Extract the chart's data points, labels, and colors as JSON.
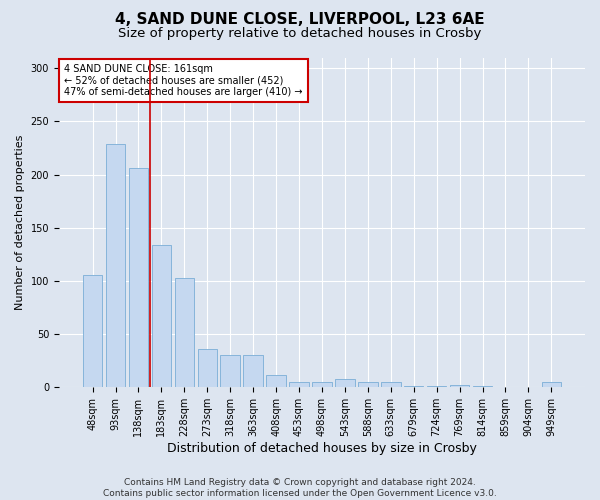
{
  "title1": "4, SAND DUNE CLOSE, LIVERPOOL, L23 6AE",
  "title2": "Size of property relative to detached houses in Crosby",
  "xlabel": "Distribution of detached houses by size in Crosby",
  "ylabel": "Number of detached properties",
  "bar_labels": [
    "48sqm",
    "93sqm",
    "138sqm",
    "183sqm",
    "228sqm",
    "273sqm",
    "318sqm",
    "363sqm",
    "408sqm",
    "453sqm",
    "498sqm",
    "543sqm",
    "588sqm",
    "633sqm",
    "679sqm",
    "724sqm",
    "769sqm",
    "814sqm",
    "859sqm",
    "904sqm",
    "949sqm"
  ],
  "bar_values": [
    106,
    229,
    206,
    134,
    103,
    36,
    30,
    30,
    12,
    5,
    5,
    8,
    5,
    5,
    1,
    1,
    2,
    1,
    0,
    0,
    5
  ],
  "bar_color": "#c5d8f0",
  "bar_edge_color": "#7aaed6",
  "vline_x_idx": 2.5,
  "vline_color": "#cc0000",
  "annotation_text": "4 SAND DUNE CLOSE: 161sqm\n← 52% of detached houses are smaller (452)\n47% of semi-detached houses are larger (410) →",
  "annotation_box_color": "#ffffff",
  "annotation_box_edge": "#cc0000",
  "bg_color": "#dde5f0",
  "plot_bg_color": "#dde5f0",
  "ylim": [
    0,
    310
  ],
  "yticks": [
    0,
    50,
    100,
    150,
    200,
    250,
    300
  ],
  "footnote": "Contains HM Land Registry data © Crown copyright and database right 2024.\nContains public sector information licensed under the Open Government Licence v3.0.",
  "title1_fontsize": 11,
  "title2_fontsize": 9.5,
  "xlabel_fontsize": 9,
  "ylabel_fontsize": 8,
  "tick_fontsize": 7,
  "footnote_fontsize": 6.5
}
